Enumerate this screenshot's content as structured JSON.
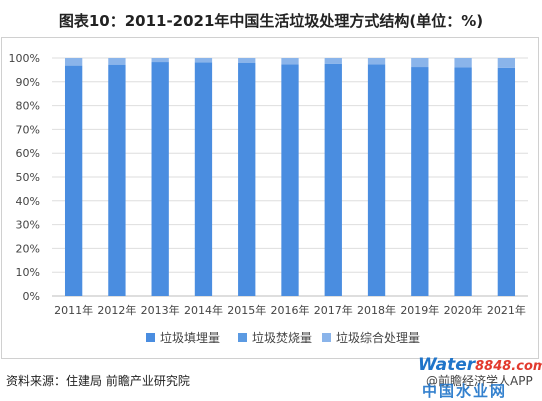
{
  "title": "图表10：2011-2021年中国生活垃圾处理方式结构(单位：%)",
  "source": "资料来源：住建局 前瞻产业研究院",
  "credit": "@前瞻经济学人APP",
  "watermark": {
    "brand": "Water",
    "number": "8848",
    "suffix": ".com",
    "sub": "中国水业网"
  },
  "chart_data": {
    "type": "bar",
    "stacked": true,
    "categories": [
      "2011年",
      "2012年",
      "2013年",
      "2014年",
      "2015年",
      "2016年",
      "2017年",
      "2018年",
      "2019年",
      "2020年",
      "2021年"
    ],
    "series": [
      {
        "name": "垃圾填埋量",
        "color": "#4a8de0",
        "values": [
          96.8,
          97.2,
          98.3,
          98.2,
          97.9,
          97.3,
          97.5,
          97.3,
          96.2,
          96.0,
          95.9
        ]
      },
      {
        "name": "垃圾焚烧量",
        "color": "#5b9ae2",
        "values": [
          0,
          0,
          0,
          0,
          0,
          0,
          0,
          0,
          0,
          0,
          0
        ]
      },
      {
        "name": "垃圾综合处理量",
        "color": "#8ab4ea",
        "values": [
          3.2,
          2.8,
          1.7,
          1.8,
          2.1,
          2.7,
          2.5,
          2.7,
          3.8,
          4.0,
          4.1
        ]
      }
    ],
    "ylim": [
      0,
      100
    ],
    "yticks": [
      "0%",
      "10%",
      "20%",
      "30%",
      "40%",
      "50%",
      "60%",
      "70%",
      "80%",
      "90%",
      "100%"
    ],
    "grid": true,
    "legend": "bottom"
  }
}
